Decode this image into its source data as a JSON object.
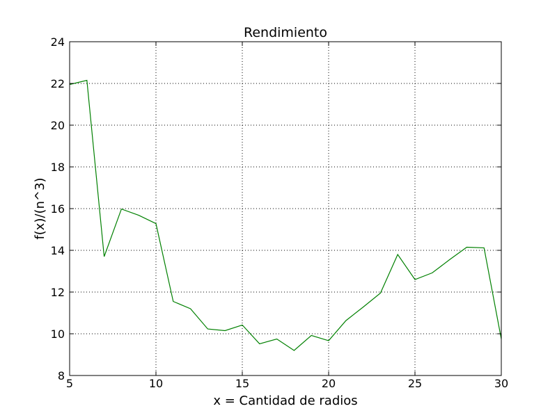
{
  "chart_data": {
    "type": "line",
    "title": "Rendimiento",
    "xlabel": "x = Cantidad de radios",
    "ylabel": "f(x)/(n^3)",
    "xlim": [
      5,
      30
    ],
    "ylim": [
      8,
      24
    ],
    "xticks": [
      5,
      10,
      15,
      20,
      25,
      30
    ],
    "yticks": [
      8,
      10,
      12,
      14,
      16,
      18,
      20,
      22,
      24
    ],
    "grid": true,
    "series": [
      {
        "color": "#008000",
        "x": [
          5,
          6,
          7,
          8,
          9,
          10,
          11,
          12,
          13,
          14,
          15,
          16,
          17,
          18,
          19,
          20,
          21,
          22,
          23,
          24,
          25,
          26,
          27,
          28,
          29,
          30
        ],
        "y": [
          21.95,
          22.15,
          13.7,
          15.98,
          15.68,
          15.28,
          11.55,
          11.2,
          10.23,
          10.15,
          10.42,
          9.52,
          9.75,
          9.2,
          9.92,
          9.67,
          10.63,
          11.28,
          11.95,
          13.8,
          12.6,
          12.92,
          13.55,
          14.15,
          14.12,
          9.75
        ]
      }
    ]
  }
}
